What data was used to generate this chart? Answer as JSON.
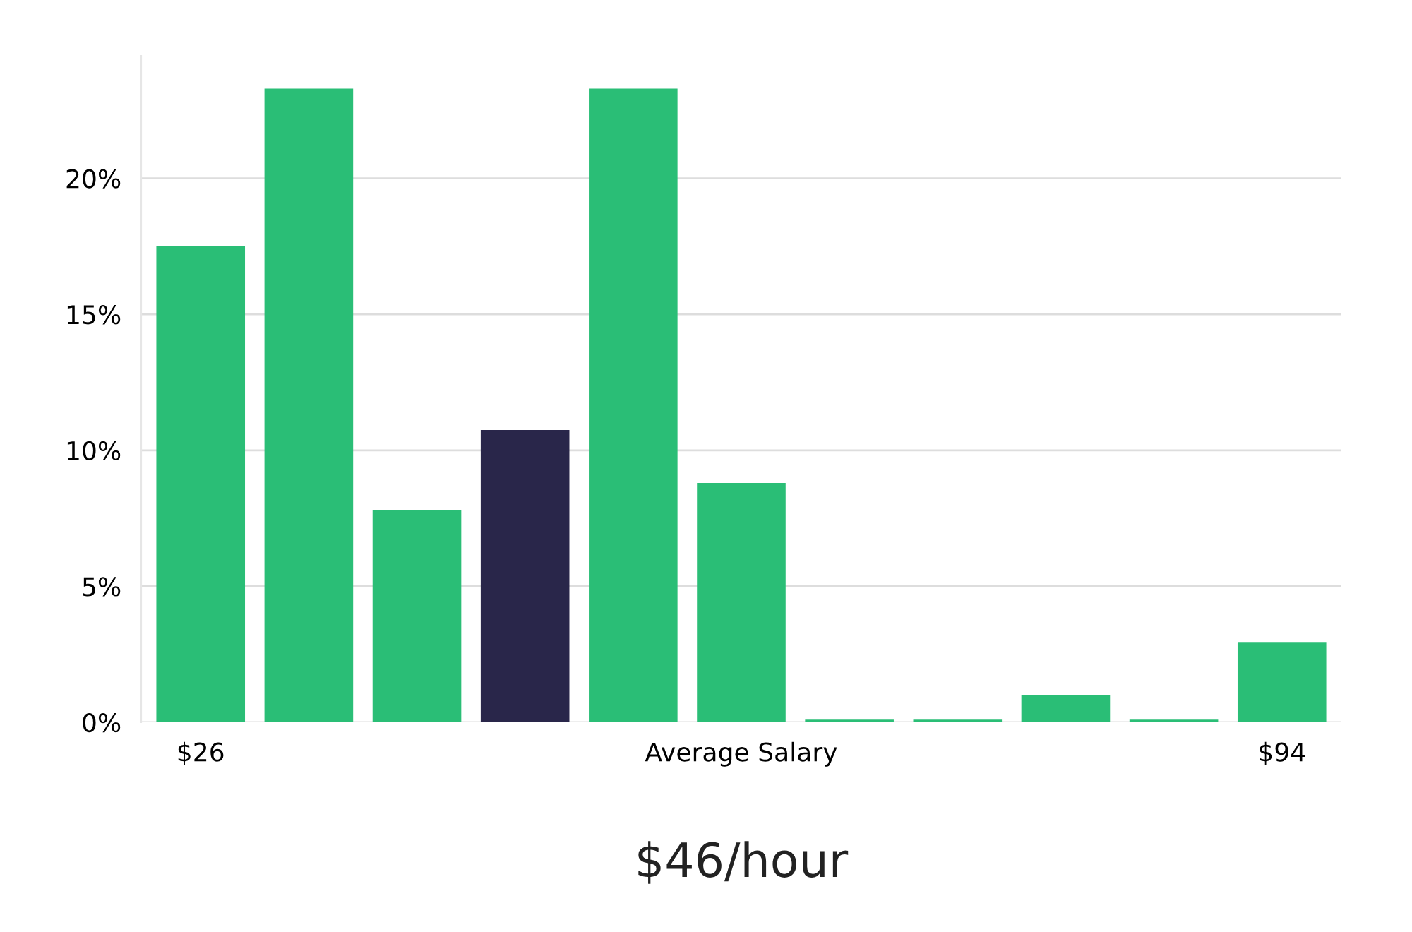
{
  "chart_data": {
    "type": "bar",
    "xlabel": "$46/hour",
    "categories": [
      "$26",
      null,
      null,
      null,
      null,
      "Average Salary",
      null,
      null,
      null,
      null,
      "$94"
    ],
    "values": [
      17.5,
      23.3,
      7.8,
      10.75,
      23.3,
      8.8,
      0.1,
      0.1,
      1.0,
      0.1,
      2.95
    ],
    "colors": [
      "#2abe76",
      "#2abe76",
      "#2abe76",
      "#29264a",
      "#2abe76",
      "#2abe76",
      "#2abe76",
      "#2abe76",
      "#2abe76",
      "#2abe76",
      "#2abe76"
    ],
    "ylim": [
      0,
      24.5
    ],
    "yticks": [
      {
        "value": 0,
        "label": "0%"
      },
      {
        "value": 5,
        "label": "5%"
      },
      {
        "value": 10,
        "label": "10%"
      },
      {
        "value": 15,
        "label": "15%"
      },
      {
        "value": 20,
        "label": "20%"
      }
    ],
    "grid": "y",
    "legend": false
  }
}
